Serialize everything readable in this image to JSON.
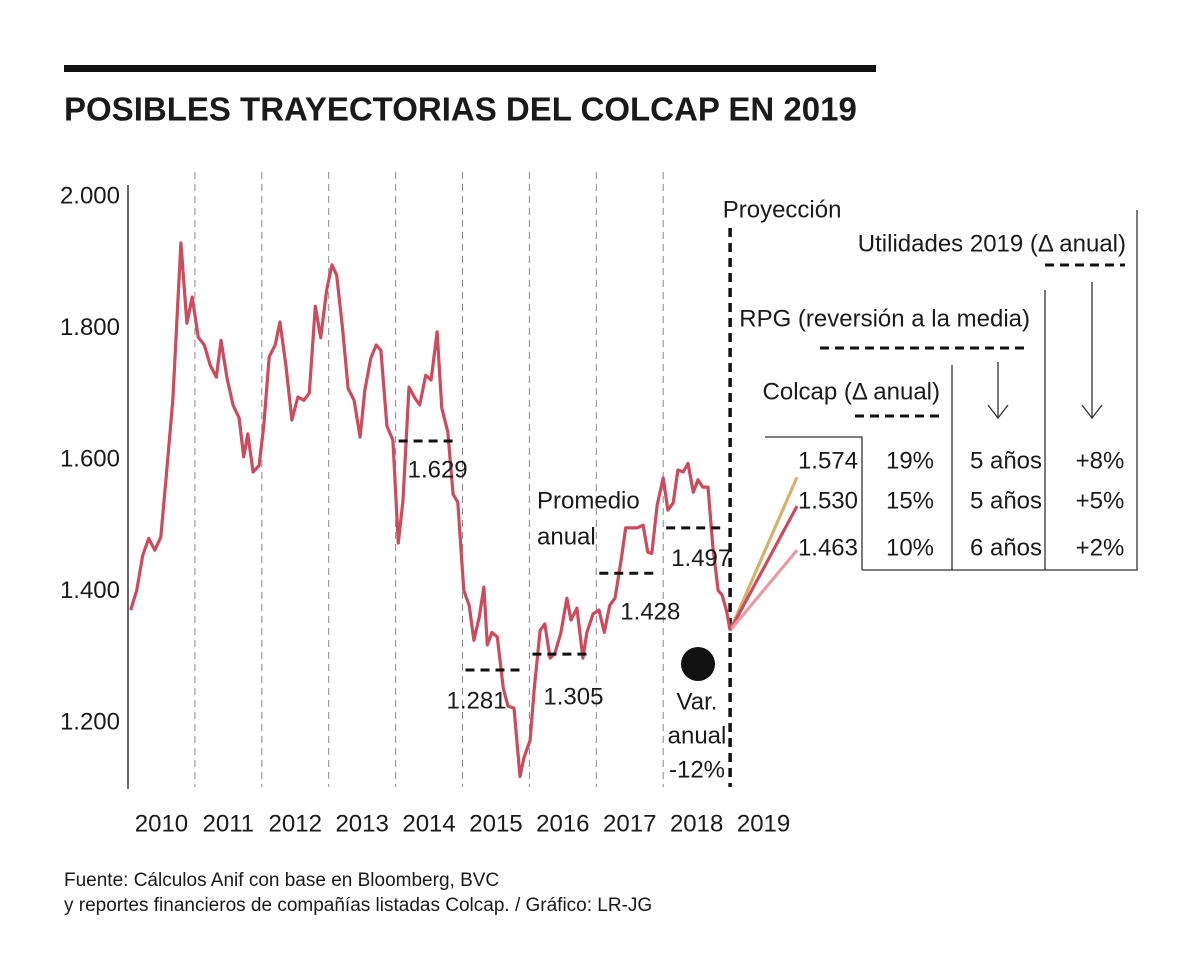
{
  "chart_data": {
    "type": "line",
    "title": "POSIBLES TRAYECTORIAS DEL COLCAP EN 2019",
    "source": [
      "Fuente: Cálculos Anif con base en Bloomberg, BVC",
      "y reportes financieros de compañías listadas Colcap. / Gráfico: LR-JG"
    ],
    "xlim": [
      2010,
      2020
    ],
    "xticks": [
      2010,
      2011,
      2012,
      2013,
      2014,
      2015,
      2016,
      2017,
      2018,
      2019
    ],
    "ylim": [
      1100,
      2000
    ],
    "yticks": [
      {
        "value": 1200,
        "label": "1.200"
      },
      {
        "value": 1400,
        "label": "1.400"
      },
      {
        "value": 1600,
        "label": "1.600"
      },
      {
        "value": 1800,
        "label": "1.800"
      },
      {
        "value": 2000,
        "label": "2.000"
      }
    ],
    "grid": true,
    "series": [
      {
        "color": "#cc4b5c",
        "x": [
          2010.04,
          2010.13,
          2010.22,
          2010.31,
          2010.4,
          2010.49,
          2010.58,
          2010.67,
          2010.79,
          2010.88,
          2010.96,
          2011.05,
          2011.14,
          2011.23,
          2011.32,
          2011.39,
          2011.48,
          2011.57,
          2011.66,
          2011.73,
          2011.79,
          2011.87,
          2011.96,
          2012.03,
          2012.11,
          2012.2,
          2012.27,
          2012.36,
          2012.45,
          2012.54,
          2012.63,
          2012.71,
          2012.8,
          2012.88,
          2012.97,
          2013.05,
          2013.12,
          2013.21,
          2013.29,
          2013.38,
          2013.47,
          2013.54,
          2013.63,
          2013.71,
          2013.78,
          2013.87,
          2013.96,
          2014.04,
          2014.11,
          2014.2,
          2014.29,
          2014.36,
          2014.45,
          2014.53,
          2014.62,
          2014.69,
          2014.78,
          2014.86,
          2014.93,
          2015.02,
          2015.1,
          2015.17,
          2015.25,
          2015.32,
          2015.37,
          2015.44,
          2015.52,
          2015.61,
          2015.68,
          2015.77,
          2015.86,
          2015.92,
          2016.01,
          2016.07,
          2016.16,
          2016.23,
          2016.31,
          2016.38,
          2016.47,
          2016.56,
          2016.62,
          2016.71,
          2016.8,
          2016.86,
          2016.95,
          2017.04,
          2017.12,
          2017.2,
          2017.28,
          2017.37,
          2017.44,
          2017.53,
          2017.61,
          2017.7,
          2017.77,
          2017.83,
          2017.91,
          2018.0,
          2018.07,
          2018.15,
          2018.22,
          2018.3,
          2018.37,
          2018.45,
          2018.52,
          2018.59,
          2018.67,
          2018.74,
          2018.82,
          2018.88,
          2018.95,
          2019.0
        ],
        "values": [
          1372,
          1402,
          1455,
          1481,
          1463,
          1483,
          1585,
          1691,
          1930,
          1808,
          1848,
          1787,
          1775,
          1744,
          1726,
          1782,
          1725,
          1684,
          1664,
          1605,
          1640,
          1582,
          1592,
          1653,
          1757,
          1775,
          1810,
          1744,
          1661,
          1696,
          1691,
          1702,
          1834,
          1786,
          1859,
          1897,
          1881,
          1798,
          1709,
          1691,
          1635,
          1706,
          1755,
          1775,
          1767,
          1652,
          1630,
          1474,
          1539,
          1711,
          1694,
          1684,
          1729,
          1722,
          1795,
          1679,
          1643,
          1548,
          1536,
          1402,
          1379,
          1326,
          1361,
          1407,
          1319,
          1338,
          1331,
          1253,
          1226,
          1223,
          1119,
          1148,
          1174,
          1250,
          1341,
          1351,
          1299,
          1306,
          1337,
          1390,
          1357,
          1375,
          1299,
          1338,
          1366,
          1372,
          1338,
          1379,
          1390,
          1448,
          1497,
          1497,
          1497,
          1501,
          1460,
          1458,
          1532,
          1573,
          1524,
          1535,
          1585,
          1582,
          1595,
          1551,
          1570,
          1559,
          1559,
          1471,
          1402,
          1395,
          1369,
          1341
        ]
      }
    ],
    "annual_averages": {
      "label": [
        "Promedio",
        "anual"
      ],
      "years": [
        2014,
        2015,
        2016,
        2017,
        2018
      ],
      "values": [
        1629,
        1281,
        1305,
        1428,
        1497
      ],
      "value_labels": [
        "1.629",
        "1.281",
        "1.305",
        "1.428",
        "1.497"
      ]
    },
    "projection_label": "Proyección",
    "annual_change": [
      "Var.",
      "anual",
      "-12%"
    ],
    "projections": {
      "headers": [
        "Colcap (Δ anual)",
        "RPG (reversión a la media)",
        "Utilidades 2019 (Δ anual)"
      ],
      "values": [
        1574,
        1530,
        1463
      ],
      "value_labels": [
        "1.574",
        "1.530",
        "1.463"
      ],
      "colors": [
        "#d6b06c",
        "#cc4b5c",
        "#e59ca2"
      ],
      "colcap_change": [
        "19%",
        "15%",
        "10%"
      ],
      "rpg": [
        "5 años",
        "5 años",
        "6 años"
      ],
      "utilidades": [
        "+8%",
        "+5%",
        "+2%"
      ]
    }
  }
}
